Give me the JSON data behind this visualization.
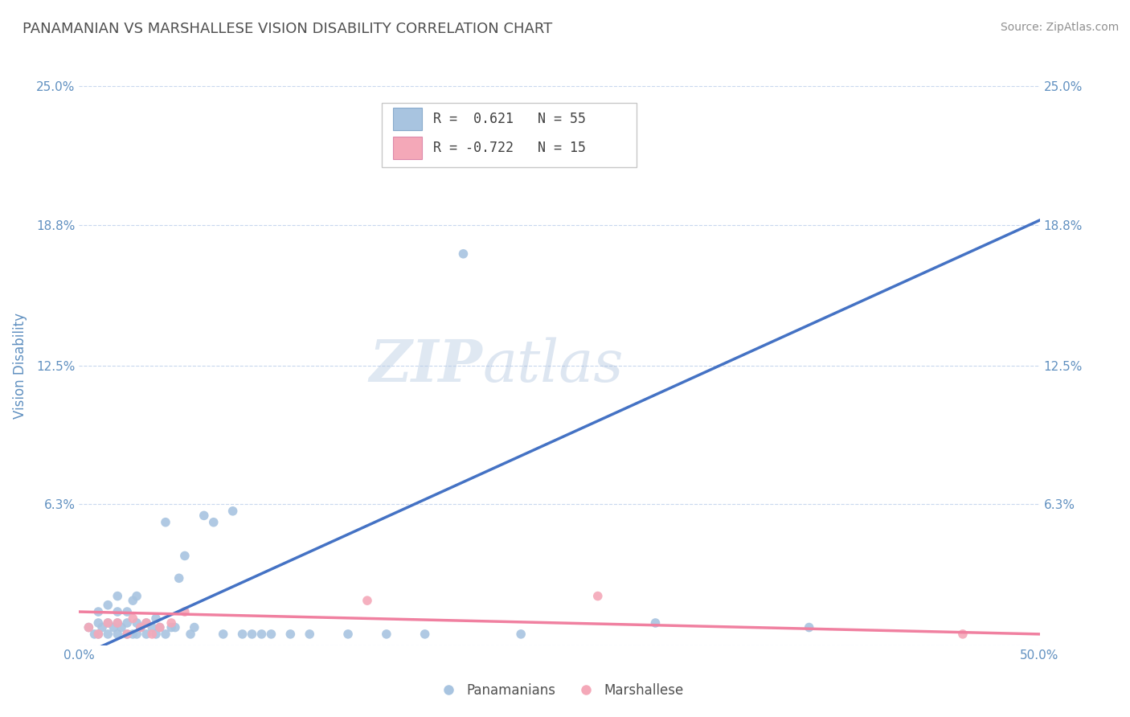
{
  "title": "PANAMANIAN VS MARSHALLESE VISION DISABILITY CORRELATION CHART",
  "source": "Source: ZipAtlas.com",
  "ylabel": "Vision Disability",
  "xlim": [
    0.0,
    0.5
  ],
  "ylim": [
    0.0,
    0.25
  ],
  "ytick_values": [
    0.0,
    0.063,
    0.125,
    0.188,
    0.25
  ],
  "ytick_labels": [
    "0.0%",
    "6.3%",
    "12.5%",
    "18.8%",
    "25.0%"
  ],
  "xtick_values": [
    0.0,
    0.5
  ],
  "xtick_labels": [
    "0.0%",
    "50.0%"
  ],
  "right_ytick_values": [
    0.0,
    0.063,
    0.125,
    0.188,
    0.25
  ],
  "right_ytick_labels": [
    "",
    "6.3%",
    "12.5%",
    "18.8%",
    "25.0%"
  ],
  "panama_color": "#a8c4e0",
  "marshal_color": "#f4a8b8",
  "line_blue": "#4472c4",
  "line_pink": "#f080a0",
  "title_color": "#505050",
  "tick_color": "#6090c0",
  "source_color": "#909090",
  "background_color": "#ffffff",
  "grid_color": "#c8d8ee",
  "watermark_color": "#d0e0f0",
  "panama_points_x": [
    0.005,
    0.008,
    0.01,
    0.01,
    0.01,
    0.012,
    0.015,
    0.015,
    0.015,
    0.018,
    0.02,
    0.02,
    0.02,
    0.02,
    0.022,
    0.025,
    0.025,
    0.025,
    0.028,
    0.028,
    0.03,
    0.03,
    0.03,
    0.032,
    0.035,
    0.035,
    0.038,
    0.04,
    0.04,
    0.042,
    0.045,
    0.045,
    0.048,
    0.05,
    0.052,
    0.055,
    0.058,
    0.06,
    0.065,
    0.07,
    0.075,
    0.08,
    0.085,
    0.09,
    0.095,
    0.1,
    0.11,
    0.12,
    0.14,
    0.16,
    0.18,
    0.2,
    0.23,
    0.3,
    0.38
  ],
  "panama_points_y": [
    0.008,
    0.005,
    0.005,
    0.01,
    0.015,
    0.008,
    0.005,
    0.01,
    0.018,
    0.008,
    0.005,
    0.01,
    0.015,
    0.022,
    0.008,
    0.005,
    0.01,
    0.015,
    0.005,
    0.02,
    0.005,
    0.01,
    0.022,
    0.008,
    0.005,
    0.01,
    0.008,
    0.005,
    0.012,
    0.008,
    0.005,
    0.055,
    0.008,
    0.008,
    0.03,
    0.04,
    0.005,
    0.008,
    0.058,
    0.055,
    0.005,
    0.06,
    0.005,
    0.005,
    0.005,
    0.005,
    0.005,
    0.005,
    0.005,
    0.005,
    0.005,
    0.175,
    0.005,
    0.01,
    0.008
  ],
  "marshal_points_x": [
    0.005,
    0.01,
    0.015,
    0.02,
    0.025,
    0.028,
    0.032,
    0.035,
    0.038,
    0.042,
    0.048,
    0.055,
    0.15,
    0.27,
    0.46
  ],
  "marshal_points_y": [
    0.008,
    0.005,
    0.01,
    0.01,
    0.005,
    0.012,
    0.008,
    0.01,
    0.005,
    0.008,
    0.01,
    0.015,
    0.02,
    0.022,
    0.005
  ],
  "blue_line_x": [
    0.0,
    0.5
  ],
  "blue_line_y": [
    -0.005,
    0.19
  ],
  "pink_line_x": [
    0.0,
    0.5
  ],
  "pink_line_y": [
    0.015,
    0.005
  ]
}
